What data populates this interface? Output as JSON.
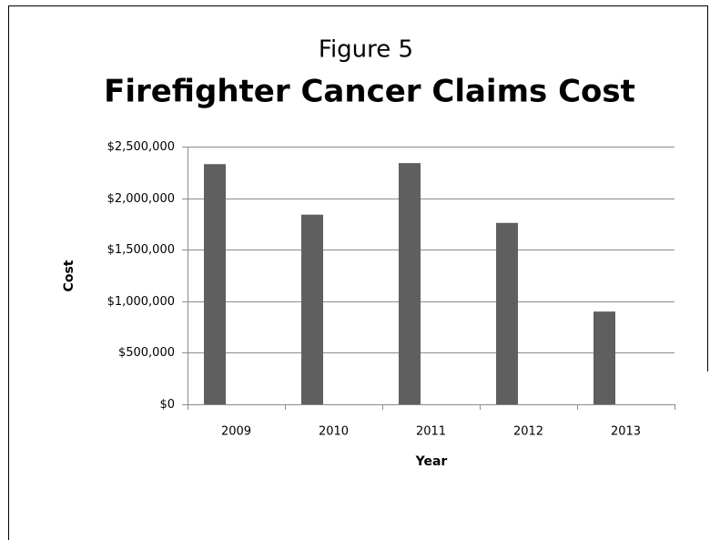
{
  "chart_data": {
    "type": "bar",
    "title": "Figure 5",
    "subtitle": "Firefighter Cancer Claims Cost",
    "x_label": "Year",
    "y_label": "Cost",
    "categories": [
      "2009",
      "2010",
      "2011",
      "2012",
      "2013"
    ],
    "values": [
      2330000,
      1840000,
      2340000,
      1760000,
      900000
    ],
    "color": "#5f5f5f",
    "ylim": [
      0,
      2500000
    ],
    "yticks": [
      {
        "value": 0,
        "label": "$0"
      },
      {
        "value": 500000,
        "label": "$500,000"
      },
      {
        "value": 1000000,
        "label": "$1,000,000"
      },
      {
        "value": 1500000,
        "label": "$1,500,000"
      },
      {
        "value": 2000000,
        "label": "$2,000,000"
      },
      {
        "value": 2500000,
        "label": "$2,500,000"
      }
    ],
    "grid": true
  }
}
